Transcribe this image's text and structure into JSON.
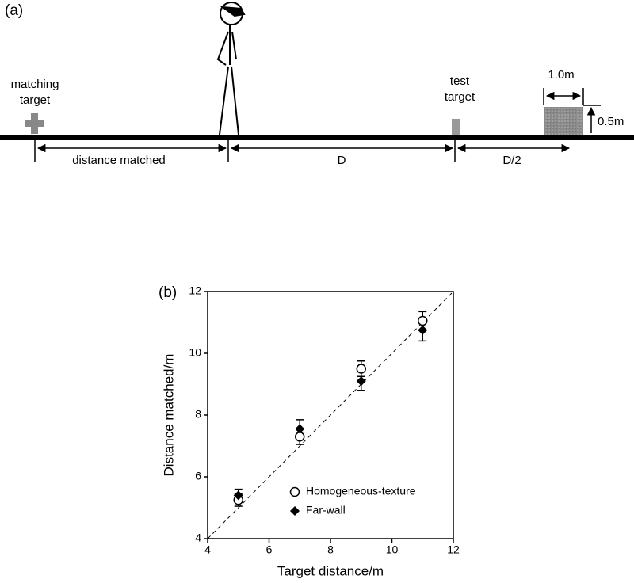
{
  "panel_a": {
    "label": "(a)",
    "matching_target": [
      "matching",
      "target"
    ],
    "test_target": [
      "test",
      "target"
    ],
    "distance_matched": "distance matched",
    "D": "D",
    "D_half": "D/2",
    "width": "1.0m",
    "height": "0.5m"
  },
  "chart_data": {
    "type": "scatter",
    "label": "(b)",
    "x_label": "Target distance/m",
    "y_label": "Distance matched/m",
    "x": [
      5,
      7,
      9,
      11
    ],
    "series": [
      {
        "name": "Homogeneous-texture",
        "marker": "open-circle",
        "color": "#000000",
        "values": [
          5.25,
          7.3,
          9.5,
          11.05
        ],
        "errors": [
          0.2,
          0.25,
          0.25,
          0.3
        ]
      },
      {
        "name": "Far-wall",
        "marker": "diamond",
        "color": "#000000",
        "values": [
          5.4,
          7.55,
          9.1,
          10.75
        ],
        "errors": [
          0.2,
          0.3,
          0.3,
          0.35
        ]
      }
    ],
    "xlim": [
      4,
      12
    ],
    "ylim": [
      4,
      12
    ],
    "xticks": [
      4,
      6,
      8,
      10,
      12
    ],
    "yticks": [
      4,
      6,
      8,
      10,
      12
    ],
    "legend": "lower right",
    "grid": false
  }
}
